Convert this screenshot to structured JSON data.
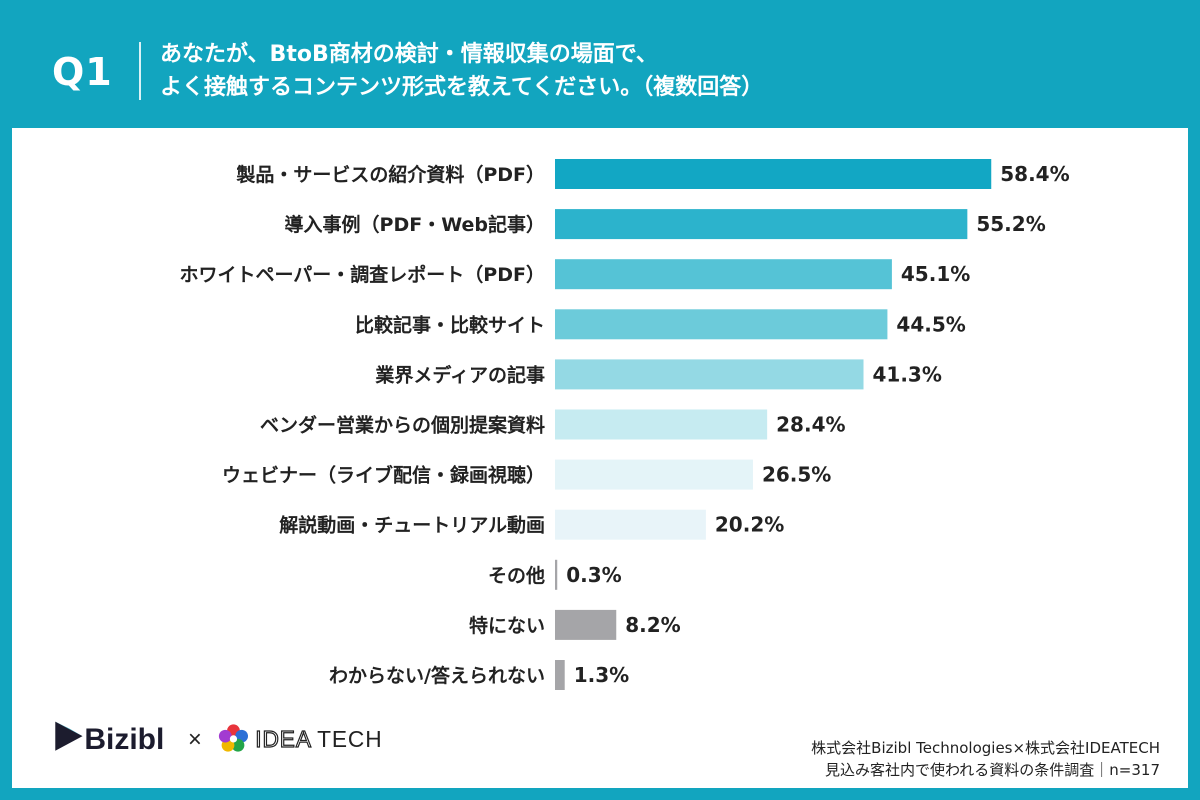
{
  "header": {
    "question_number": "Q1",
    "question_line1": "あなたが、BtoB商材の検討・情報収集の場面で、",
    "question_line2": "よく接触するコンテンツ形式を教えてください。（複数回答）"
  },
  "chart_data": {
    "type": "bar",
    "orientation": "horizontal",
    "categories": [
      "製品・サービスの紹介資料（PDF）",
      "導入事例（PDF・Web記事）",
      "ホワイトペーパー・調査レポート（PDF）",
      "比較記事・比較サイト",
      "業界メディアの記事",
      "ベンダー営業からの個別提案資料",
      "ウェビナー（ライブ配信・録画視聴）",
      "解説動画・チュートリアル動画",
      "その他",
      "特にない",
      "わからない/答えられない"
    ],
    "values": [
      58.4,
      55.2,
      45.1,
      44.5,
      41.3,
      28.4,
      26.5,
      20.2,
      0.3,
      8.2,
      1.3
    ],
    "value_labels": [
      "58.4%",
      "55.2%",
      "45.1%",
      "44.5%",
      "41.3%",
      "28.4%",
      "26.5%",
      "20.2%",
      "0.3%",
      "8.2%",
      "1.3%"
    ],
    "bar_colors": [
      "#12a7c4",
      "#2cb3cc",
      "#55c3d6",
      "#6ccbda",
      "#94d9e4",
      "#c6ebf1",
      "#e4f4f8",
      "#e8f4f9",
      "#a5a5a8",
      "#a5a5a8",
      "#a5a5a8"
    ],
    "xlim": [
      0,
      60
    ]
  },
  "footer": {
    "logo_bizibl": "Bizibl",
    "logo_times": "×",
    "logo_ideatech_idea": "IDEA",
    "logo_ideatech_tech": "TECH",
    "note_line1": "株式会社Bizibl Technologies×株式会社IDEATECH",
    "note_line2": "見込み客社内で使われる資料の条件調査｜n=317"
  },
  "colors": {
    "header_bg": "#12a5bf",
    "text_dark": "#222222"
  }
}
